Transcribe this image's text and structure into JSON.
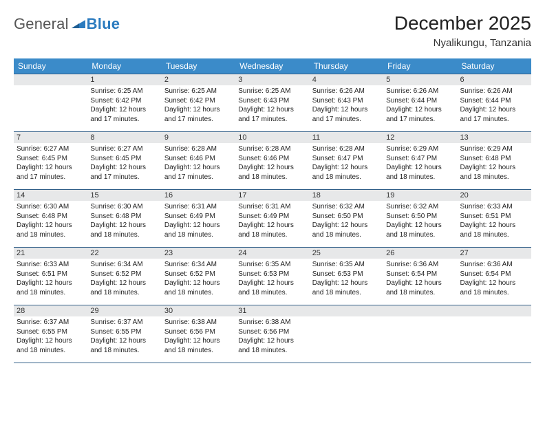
{
  "brand": {
    "part1": "General",
    "part2": "Blue"
  },
  "title": "December 2025",
  "location": "Nyalikungu, Tanzania",
  "colors": {
    "header_bg": "#3b8bc9",
    "header_text": "#ffffff",
    "row_border": "#2f5d87",
    "daynum_bg": "#e7e8e9",
    "text": "#222222",
    "brand_gray": "#555555",
    "brand_blue": "#2b7bbf"
  },
  "typography": {
    "title_fontsize": 28,
    "location_fontsize": 15,
    "weekday_fontsize": 12,
    "daynum_fontsize": 11,
    "cell_fontsize": 10
  },
  "weekdays": [
    "Sunday",
    "Monday",
    "Tuesday",
    "Wednesday",
    "Thursday",
    "Friday",
    "Saturday"
  ],
  "weeks": [
    [
      {
        "n": "",
        "lines": []
      },
      {
        "n": "1",
        "lines": [
          "Sunrise: 6:25 AM",
          "Sunset: 6:42 PM",
          "Daylight: 12 hours and 17 minutes."
        ]
      },
      {
        "n": "2",
        "lines": [
          "Sunrise: 6:25 AM",
          "Sunset: 6:42 PM",
          "Daylight: 12 hours and 17 minutes."
        ]
      },
      {
        "n": "3",
        "lines": [
          "Sunrise: 6:25 AM",
          "Sunset: 6:43 PM",
          "Daylight: 12 hours and 17 minutes."
        ]
      },
      {
        "n": "4",
        "lines": [
          "Sunrise: 6:26 AM",
          "Sunset: 6:43 PM",
          "Daylight: 12 hours and 17 minutes."
        ]
      },
      {
        "n": "5",
        "lines": [
          "Sunrise: 6:26 AM",
          "Sunset: 6:44 PM",
          "Daylight: 12 hours and 17 minutes."
        ]
      },
      {
        "n": "6",
        "lines": [
          "Sunrise: 6:26 AM",
          "Sunset: 6:44 PM",
          "Daylight: 12 hours and 17 minutes."
        ]
      }
    ],
    [
      {
        "n": "7",
        "lines": [
          "Sunrise: 6:27 AM",
          "Sunset: 6:45 PM",
          "Daylight: 12 hours and 17 minutes."
        ]
      },
      {
        "n": "8",
        "lines": [
          "Sunrise: 6:27 AM",
          "Sunset: 6:45 PM",
          "Daylight: 12 hours and 17 minutes."
        ]
      },
      {
        "n": "9",
        "lines": [
          "Sunrise: 6:28 AM",
          "Sunset: 6:46 PM",
          "Daylight: 12 hours and 17 minutes."
        ]
      },
      {
        "n": "10",
        "lines": [
          "Sunrise: 6:28 AM",
          "Sunset: 6:46 PM",
          "Daylight: 12 hours and 18 minutes."
        ]
      },
      {
        "n": "11",
        "lines": [
          "Sunrise: 6:28 AM",
          "Sunset: 6:47 PM",
          "Daylight: 12 hours and 18 minutes."
        ]
      },
      {
        "n": "12",
        "lines": [
          "Sunrise: 6:29 AM",
          "Sunset: 6:47 PM",
          "Daylight: 12 hours and 18 minutes."
        ]
      },
      {
        "n": "13",
        "lines": [
          "Sunrise: 6:29 AM",
          "Sunset: 6:48 PM",
          "Daylight: 12 hours and 18 minutes."
        ]
      }
    ],
    [
      {
        "n": "14",
        "lines": [
          "Sunrise: 6:30 AM",
          "Sunset: 6:48 PM",
          "Daylight: 12 hours and 18 minutes."
        ]
      },
      {
        "n": "15",
        "lines": [
          "Sunrise: 6:30 AM",
          "Sunset: 6:48 PM",
          "Daylight: 12 hours and 18 minutes."
        ]
      },
      {
        "n": "16",
        "lines": [
          "Sunrise: 6:31 AM",
          "Sunset: 6:49 PM",
          "Daylight: 12 hours and 18 minutes."
        ]
      },
      {
        "n": "17",
        "lines": [
          "Sunrise: 6:31 AM",
          "Sunset: 6:49 PM",
          "Daylight: 12 hours and 18 minutes."
        ]
      },
      {
        "n": "18",
        "lines": [
          "Sunrise: 6:32 AM",
          "Sunset: 6:50 PM",
          "Daylight: 12 hours and 18 minutes."
        ]
      },
      {
        "n": "19",
        "lines": [
          "Sunrise: 6:32 AM",
          "Sunset: 6:50 PM",
          "Daylight: 12 hours and 18 minutes."
        ]
      },
      {
        "n": "20",
        "lines": [
          "Sunrise: 6:33 AM",
          "Sunset: 6:51 PM",
          "Daylight: 12 hours and 18 minutes."
        ]
      }
    ],
    [
      {
        "n": "21",
        "lines": [
          "Sunrise: 6:33 AM",
          "Sunset: 6:51 PM",
          "Daylight: 12 hours and 18 minutes."
        ]
      },
      {
        "n": "22",
        "lines": [
          "Sunrise: 6:34 AM",
          "Sunset: 6:52 PM",
          "Daylight: 12 hours and 18 minutes."
        ]
      },
      {
        "n": "23",
        "lines": [
          "Sunrise: 6:34 AM",
          "Sunset: 6:52 PM",
          "Daylight: 12 hours and 18 minutes."
        ]
      },
      {
        "n": "24",
        "lines": [
          "Sunrise: 6:35 AM",
          "Sunset: 6:53 PM",
          "Daylight: 12 hours and 18 minutes."
        ]
      },
      {
        "n": "25",
        "lines": [
          "Sunrise: 6:35 AM",
          "Sunset: 6:53 PM",
          "Daylight: 12 hours and 18 minutes."
        ]
      },
      {
        "n": "26",
        "lines": [
          "Sunrise: 6:36 AM",
          "Sunset: 6:54 PM",
          "Daylight: 12 hours and 18 minutes."
        ]
      },
      {
        "n": "27",
        "lines": [
          "Sunrise: 6:36 AM",
          "Sunset: 6:54 PM",
          "Daylight: 12 hours and 18 minutes."
        ]
      }
    ],
    [
      {
        "n": "28",
        "lines": [
          "Sunrise: 6:37 AM",
          "Sunset: 6:55 PM",
          "Daylight: 12 hours and 18 minutes."
        ]
      },
      {
        "n": "29",
        "lines": [
          "Sunrise: 6:37 AM",
          "Sunset: 6:55 PM",
          "Daylight: 12 hours and 18 minutes."
        ]
      },
      {
        "n": "30",
        "lines": [
          "Sunrise: 6:38 AM",
          "Sunset: 6:56 PM",
          "Daylight: 12 hours and 18 minutes."
        ]
      },
      {
        "n": "31",
        "lines": [
          "Sunrise: 6:38 AM",
          "Sunset: 6:56 PM",
          "Daylight: 12 hours and 18 minutes."
        ]
      },
      {
        "n": "",
        "lines": []
      },
      {
        "n": "",
        "lines": []
      },
      {
        "n": "",
        "lines": []
      }
    ]
  ]
}
